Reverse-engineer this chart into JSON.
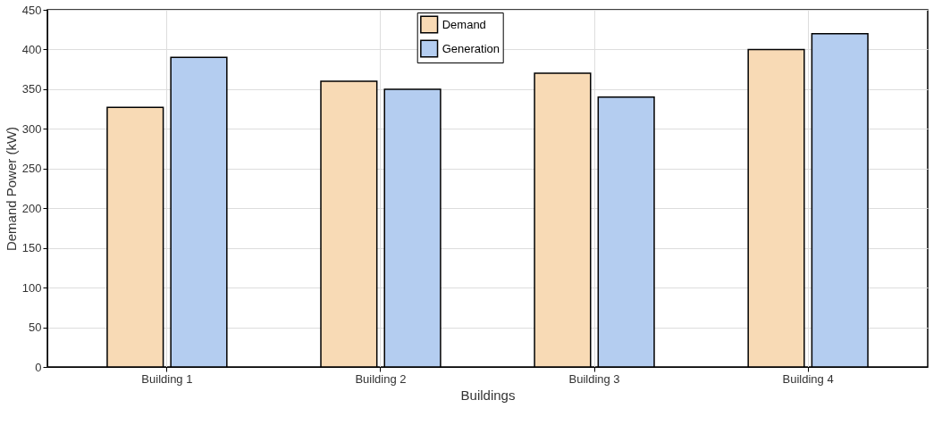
{
  "chart_data": {
    "type": "bar",
    "xlabel": "Buildings",
    "ylabel": "Demand Power (kW)",
    "categories": [
      "Building 1",
      "Building 2",
      "Building 3",
      "Building 4"
    ],
    "series": [
      {
        "name": "Demand",
        "color": "#f8dab5",
        "values": [
          327,
          360,
          370,
          400
        ]
      },
      {
        "name": "Generation",
        "color": "#b4cdf0",
        "values": [
          390,
          350,
          340,
          420
        ]
      }
    ],
    "ylim": [
      0,
      450
    ],
    "yticks": [
      0,
      50,
      100,
      150,
      200,
      250,
      300,
      350,
      400,
      450
    ],
    "grid": true,
    "legend": "top"
  }
}
